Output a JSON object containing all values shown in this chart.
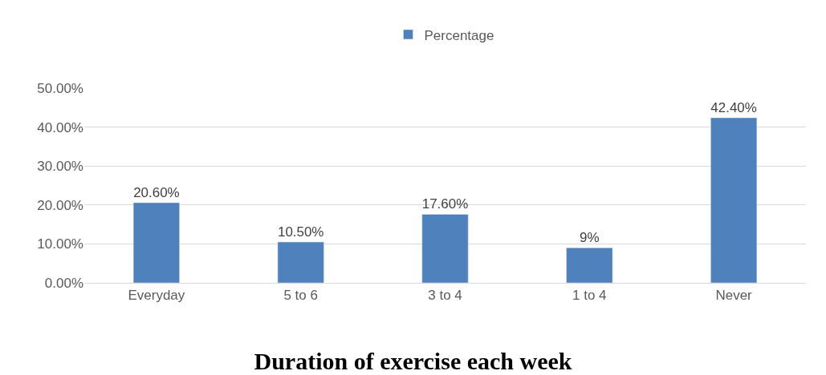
{
  "chart_data": {
    "type": "bar",
    "title": "Duration of exercise each week",
    "categories": [
      "Everyday",
      "5 to 6",
      "3 to 4",
      "1 to 4",
      "Never"
    ],
    "series": [
      {
        "name": "Percentage",
        "color": "#4f81bd",
        "values": [
          20.6,
          10.5,
          17.6,
          9,
          42.4
        ],
        "value_labels": [
          "20.60%",
          "10.50%",
          "17.60%",
          "9%",
          "42.40%"
        ]
      }
    ],
    "ylim": [
      0,
      50
    ],
    "yticks": [
      {
        "value": 0,
        "label": "0.00%"
      },
      {
        "value": 10,
        "label": "10.00%"
      },
      {
        "value": 20,
        "label": "20.00%"
      },
      {
        "value": 30,
        "label": "30.00%"
      },
      {
        "value": 40,
        "label": "40.00%"
      },
      {
        "value": 50,
        "label": "50.00%"
      }
    ],
    "grid": "y",
    "legend": "top"
  }
}
